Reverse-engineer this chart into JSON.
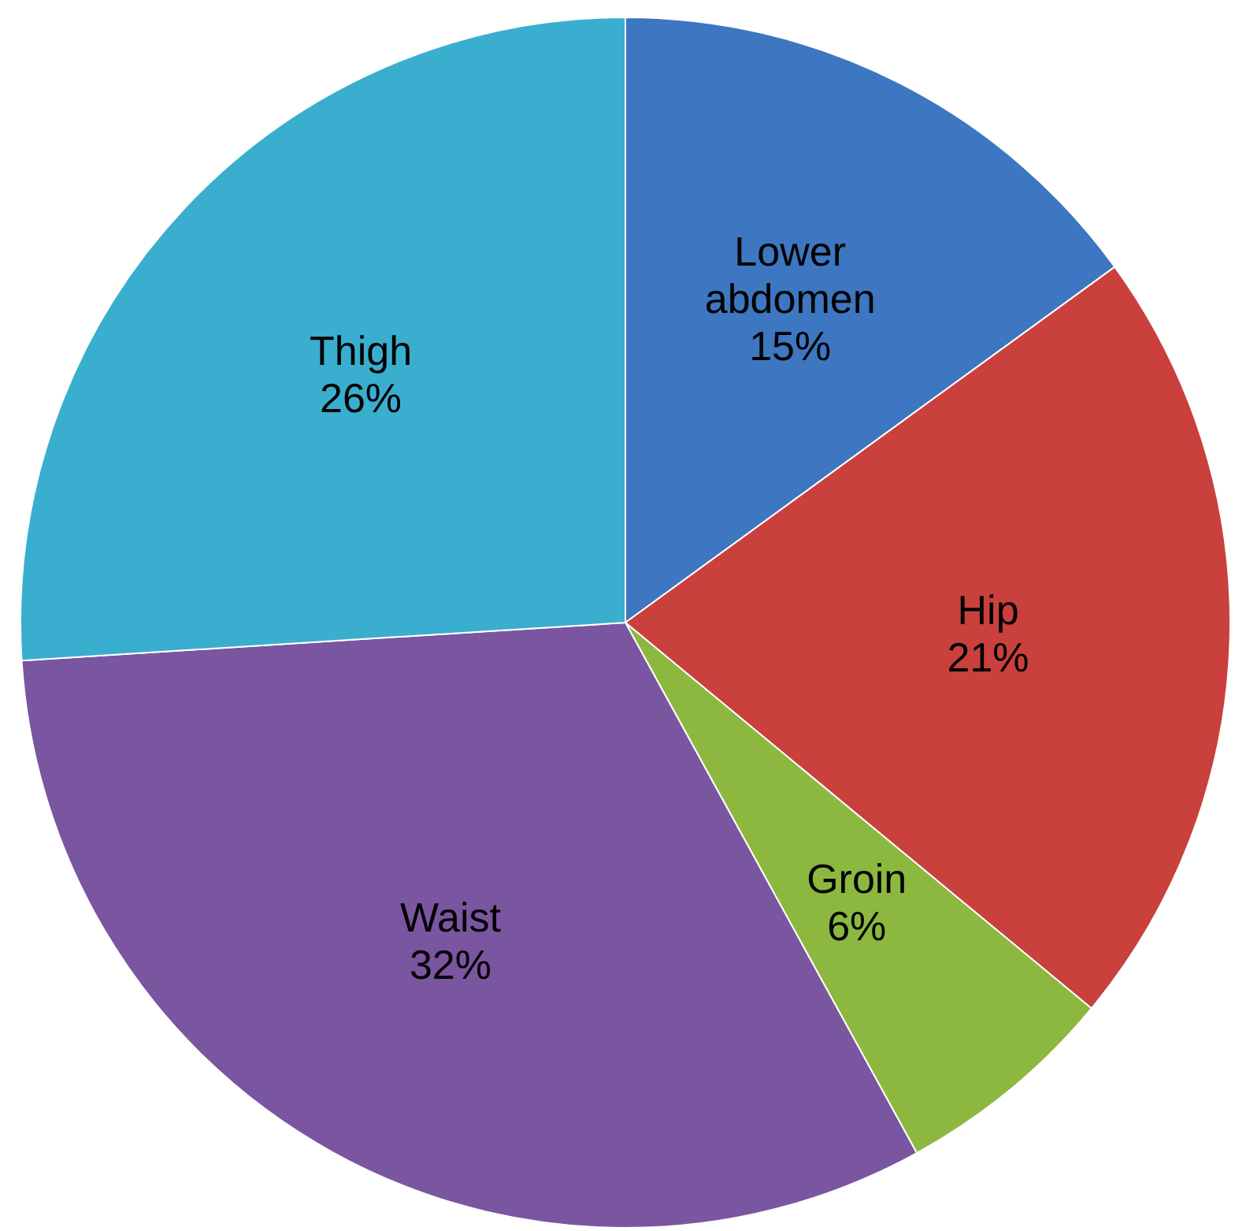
{
  "chart_data": {
    "type": "pie",
    "categories": [
      "Lower abdomen",
      "Hip",
      "Groin",
      "Waist",
      "Thigh"
    ],
    "values": [
      15,
      21,
      6,
      32,
      26
    ],
    "value_labels": [
      "15%",
      "21%",
      "6%",
      "32%",
      "26%"
    ],
    "colors": [
      "#3d76c1",
      "#c9403c",
      "#8cb83f",
      "#7a55a0",
      "#3aaecf"
    ]
  }
}
